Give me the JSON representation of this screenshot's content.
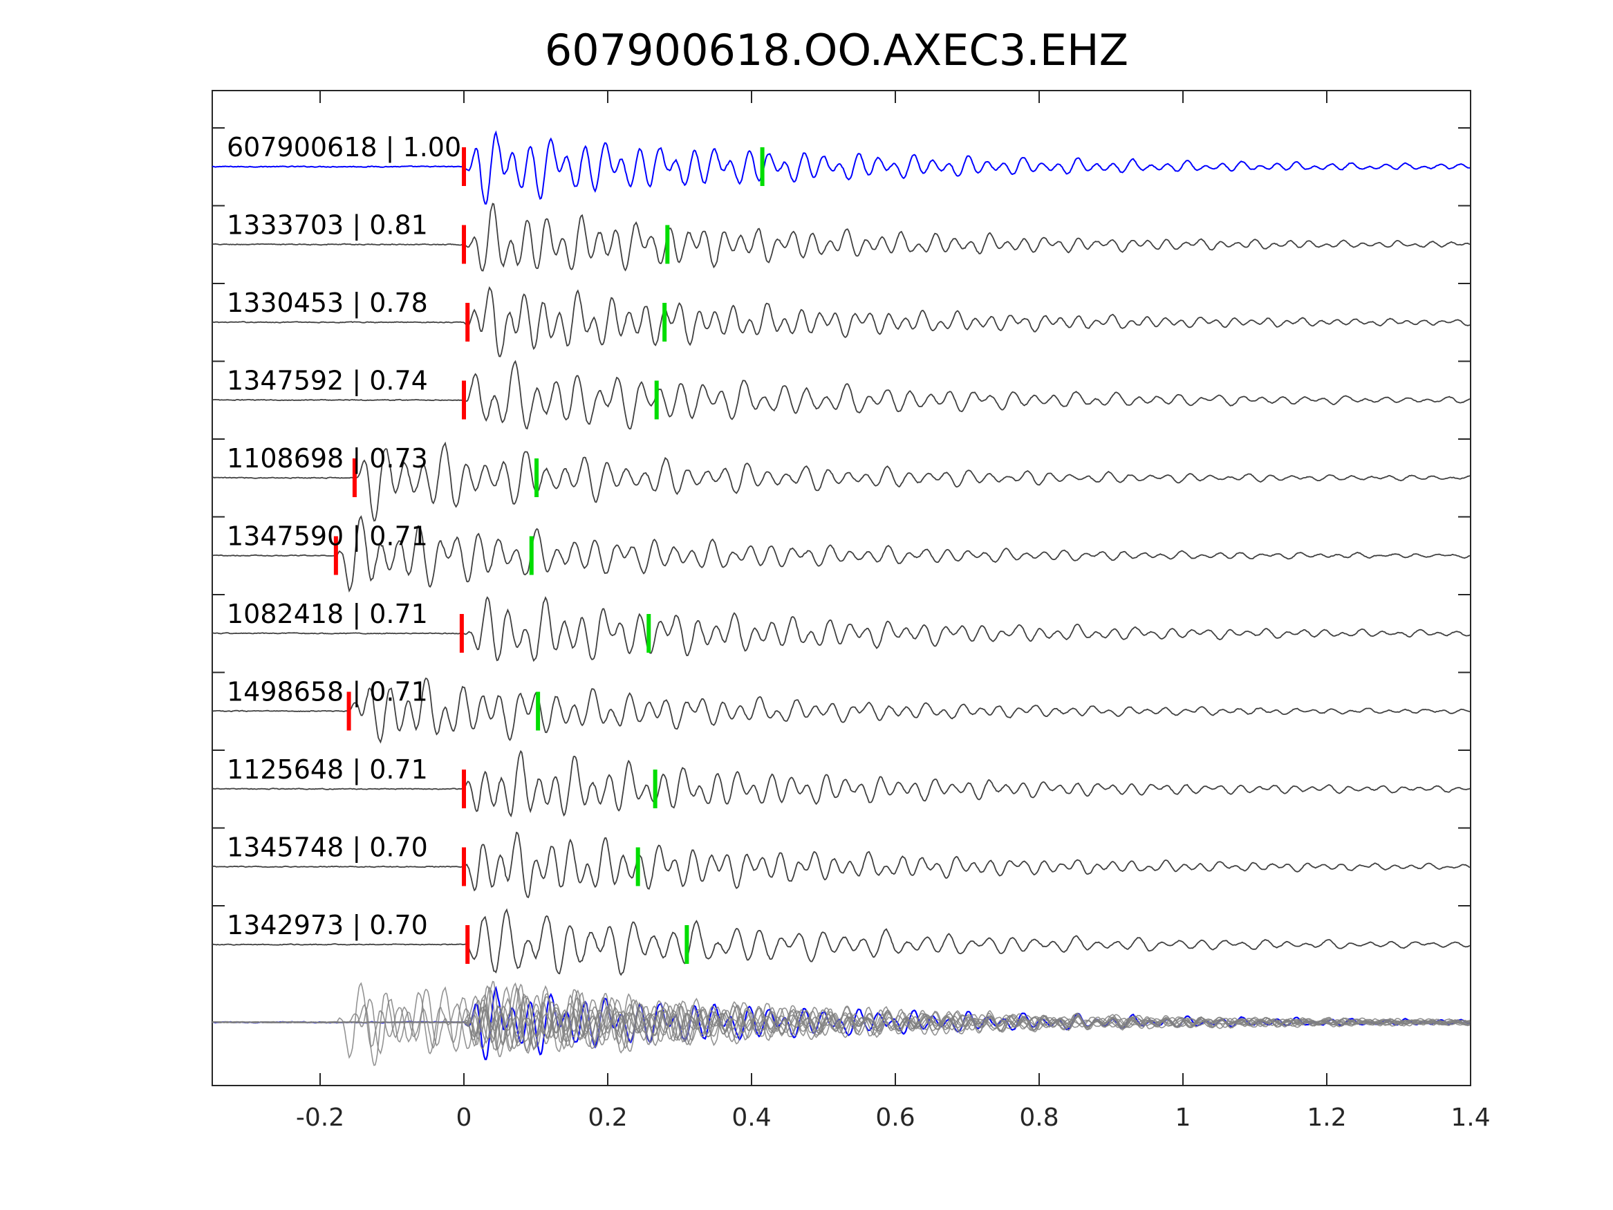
{
  "chart_data": {
    "type": "line",
    "title": "607900618.OO.AXEC3.EHZ",
    "xlabel": "",
    "ylabel": "",
    "xlim": [
      -0.35,
      1.4
    ],
    "x_ticks": [
      -0.2,
      0,
      0.2,
      0.4,
      0.6,
      0.8,
      1,
      1.2,
      1.4
    ],
    "x_tick_labels": [
      "-0.2",
      "0",
      "0.2",
      "0.4",
      "0.6",
      "0.8",
      "1",
      "1.2",
      "1.4"
    ],
    "grid": false,
    "template_color": "#0000ff",
    "trace_color": "#404040",
    "stack_color": "#808080",
    "p_pick_color": "#ff0000",
    "s_pick_color": "#00dd00",
    "series": [
      {
        "id": "607900618",
        "label": "607900618 | 1.00",
        "cc": 1.0,
        "p_pick": 0.0,
        "s_pick": 0.415,
        "onset": 0.0
      },
      {
        "id": "1333703",
        "label": "1333703 | 0.81",
        "cc": 0.81,
        "p_pick": 0.0,
        "s_pick": 0.283,
        "onset": 0.0
      },
      {
        "id": "1330453",
        "label": "1330453 | 0.78",
        "cc": 0.78,
        "p_pick": 0.005,
        "s_pick": 0.279,
        "onset": 0.0
      },
      {
        "id": "1347592",
        "label": "1347592 | 0.74",
        "cc": 0.74,
        "p_pick": 0.0,
        "s_pick": 0.268,
        "onset": 0.0
      },
      {
        "id": "1108698",
        "label": "1108698 | 0.73",
        "cc": 0.73,
        "p_pick": -0.152,
        "s_pick": 0.101,
        "onset": -0.15
      },
      {
        "id": "1347590",
        "label": "1347590 | 0.71",
        "cc": 0.71,
        "p_pick": -0.178,
        "s_pick": 0.094,
        "onset": -0.18
      },
      {
        "id": "1082418",
        "label": "1082418 | 0.71",
        "cc": 0.71,
        "p_pick": -0.003,
        "s_pick": 0.257,
        "onset": 0.0
      },
      {
        "id": "1498658",
        "label": "1498658 | 0.71",
        "cc": 0.71,
        "p_pick": -0.16,
        "s_pick": 0.103,
        "onset": -0.16
      },
      {
        "id": "1125648",
        "label": "1125648 | 0.71",
        "cc": 0.71,
        "p_pick": 0.0,
        "s_pick": 0.266,
        "onset": 0.0
      },
      {
        "id": "1345748",
        "label": "1345748 | 0.70",
        "cc": 0.7,
        "p_pick": 0.0,
        "s_pick": 0.242,
        "onset": 0.0
      },
      {
        "id": "1342973",
        "label": "1342973 | 0.70",
        "cc": 0.7,
        "p_pick": 0.005,
        "s_pick": 0.31,
        "onset": 0.0
      }
    ]
  }
}
